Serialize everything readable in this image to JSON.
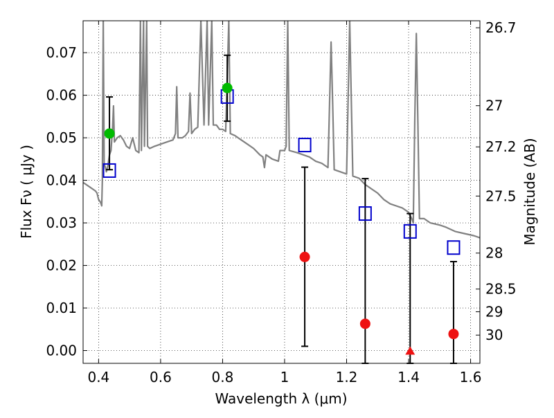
{
  "chart_data": {
    "type": "scatter",
    "xlabel": "Wavelength  λ (μm)",
    "ylabel": "Flux  Fν  ( μJy )",
    "y2label": "Magnitude (AB)",
    "xlim": [
      0.35,
      1.63
    ],
    "ylim": [
      -0.003,
      0.0775
    ],
    "grid": true,
    "grid_style": "dotted",
    "x_ticks": [
      0.4,
      0.6,
      0.8,
      1.0,
      1.2,
      1.4,
      1.6
    ],
    "x_tick_labels": [
      "0.4",
      "0.6",
      "0.8",
      "1",
      "1.2",
      "1.4",
      "1.6"
    ],
    "y_ticks": [
      0.0,
      0.01,
      0.02,
      0.03,
      0.04,
      0.05,
      0.06,
      0.07
    ],
    "y_tick_labels": [
      "0.00",
      "0.01",
      "0.02",
      "0.03",
      "0.04",
      "0.05",
      "0.06",
      "0.07"
    ],
    "y2_ticks": [
      {
        "label": "26.7",
        "mag": 26.7
      },
      {
        "label": "27",
        "mag": 27.0
      },
      {
        "label": "27.2",
        "mag": 27.2
      },
      {
        "label": "27.5",
        "mag": 27.5
      },
      {
        "label": "28",
        "mag": 28.0
      },
      {
        "label": "28.5",
        "mag": 28.5
      },
      {
        "label": "29",
        "mag": 29.0
      },
      {
        "label": "30",
        "mag": 30.0
      }
    ],
    "colors": {
      "model": "#808080",
      "model_points": "#0000cc",
      "detections": "#00bb00",
      "non_detections": "#ee1111",
      "errorbars": "#000000"
    },
    "series": [
      {
        "kind": "line",
        "color": "#808080",
        "points": [
          [
            0.35,
            0.0395
          ],
          [
            0.36,
            0.039
          ],
          [
            0.37,
            0.0385
          ],
          [
            0.38,
            0.038
          ],
          [
            0.39,
            0.0375
          ],
          [
            0.395,
            0.037
          ],
          [
            0.4,
            0.0355
          ],
          [
            0.405,
            0.035
          ],
          [
            0.408,
            0.0345
          ],
          [
            0.41,
            0.034
          ],
          [
            0.412,
            0.04
          ],
          [
            0.415,
            0.0775
          ],
          [
            0.418,
            0.044
          ],
          [
            0.422,
            0.043
          ],
          [
            0.425,
            0.042
          ],
          [
            0.43,
            0.0435
          ],
          [
            0.435,
            0.046
          ],
          [
            0.44,
            0.047
          ],
          [
            0.445,
            0.052
          ],
          [
            0.448,
            0.0575
          ],
          [
            0.451,
            0.049
          ],
          [
            0.46,
            0.05
          ],
          [
            0.47,
            0.0505
          ],
          [
            0.48,
            0.0495
          ],
          [
            0.49,
            0.048
          ],
          [
            0.5,
            0.0475
          ],
          [
            0.51,
            0.05
          ],
          [
            0.52,
            0.047
          ],
          [
            0.53,
            0.0465
          ],
          [
            0.535,
            0.0775
          ],
          [
            0.538,
            0.047
          ],
          [
            0.545,
            0.0775
          ],
          [
            0.548,
            0.048
          ],
          [
            0.555,
            0.0775
          ],
          [
            0.558,
            0.048
          ],
          [
            0.565,
            0.0475
          ],
          [
            0.58,
            0.048
          ],
          [
            0.6,
            0.0485
          ],
          [
            0.62,
            0.049
          ],
          [
            0.64,
            0.0495
          ],
          [
            0.648,
            0.051
          ],
          [
            0.652,
            0.062
          ],
          [
            0.656,
            0.05
          ],
          [
            0.67,
            0.05
          ],
          [
            0.68,
            0.0505
          ],
          [
            0.69,
            0.0515
          ],
          [
            0.695,
            0.0605
          ],
          [
            0.7,
            0.051
          ],
          [
            0.71,
            0.052
          ],
          [
            0.72,
            0.0525
          ],
          [
            0.73,
            0.0775
          ],
          [
            0.74,
            0.053
          ],
          [
            0.75,
            0.0775
          ],
          [
            0.755,
            0.053
          ],
          [
            0.765,
            0.0775
          ],
          [
            0.77,
            0.053
          ],
          [
            0.78,
            0.053
          ],
          [
            0.79,
            0.052
          ],
          [
            0.8,
            0.052
          ],
          [
            0.81,
            0.0515
          ],
          [
            0.82,
            0.0775
          ],
          [
            0.825,
            0.051
          ],
          [
            0.84,
            0.0505
          ],
          [
            0.86,
            0.0495
          ],
          [
            0.88,
            0.0485
          ],
          [
            0.9,
            0.0475
          ],
          [
            0.92,
            0.046
          ],
          [
            0.93,
            0.0455
          ],
          [
            0.935,
            0.043
          ],
          [
            0.94,
            0.046
          ],
          [
            0.96,
            0.045
          ],
          [
            0.98,
            0.0445
          ],
          [
            0.985,
            0.047
          ],
          [
            0.99,
            0.047
          ],
          [
            1.0,
            0.047
          ],
          [
            1.005,
            0.048
          ],
          [
            1.01,
            0.0775
          ],
          [
            1.015,
            0.047
          ],
          [
            1.04,
            0.0465
          ],
          [
            1.06,
            0.046
          ],
          [
            1.08,
            0.0455
          ],
          [
            1.1,
            0.0445
          ],
          [
            1.12,
            0.044
          ],
          [
            1.14,
            0.043
          ],
          [
            1.145,
            0.058
          ],
          [
            1.15,
            0.0725
          ],
          [
            1.155,
            0.058
          ],
          [
            1.16,
            0.0425
          ],
          [
            1.18,
            0.042
          ],
          [
            1.2,
            0.0415
          ],
          [
            1.21,
            0.0775
          ],
          [
            1.22,
            0.041
          ],
          [
            1.24,
            0.0405
          ],
          [
            1.26,
            0.039
          ],
          [
            1.28,
            0.038
          ],
          [
            1.3,
            0.037
          ],
          [
            1.32,
            0.0355
          ],
          [
            1.34,
            0.0345
          ],
          [
            1.36,
            0.034
          ],
          [
            1.38,
            0.0335
          ],
          [
            1.4,
            0.0325
          ],
          [
            1.41,
            0.031
          ],
          [
            1.415,
            0.03
          ],
          [
            1.42,
            0.0545
          ],
          [
            1.425,
            0.0745
          ],
          [
            1.43,
            0.053
          ],
          [
            1.435,
            0.031
          ],
          [
            1.45,
            0.031
          ],
          [
            1.47,
            0.03
          ],
          [
            1.5,
            0.0295
          ],
          [
            1.52,
            0.029
          ],
          [
            1.55,
            0.028
          ],
          [
            1.58,
            0.0275
          ],
          [
            1.61,
            0.027
          ],
          [
            1.63,
            0.0265
          ]
        ]
      },
      {
        "kind": "model_points",
        "color": "#0000cc",
        "points": [
          {
            "x": 0.435,
            "y": 0.0423
          },
          {
            "x": 0.815,
            "y": 0.0597
          },
          {
            "x": 1.065,
            "y": 0.0483
          },
          {
            "x": 1.26,
            "y": 0.0322
          },
          {
            "x": 1.405,
            "y": 0.028
          },
          {
            "x": 1.545,
            "y": 0.0242
          }
        ]
      },
      {
        "kind": "detections",
        "color": "#00bb00",
        "points": [
          {
            "x": 0.435,
            "y": 0.051,
            "err_low": 0.0425,
            "err_high": 0.0596
          },
          {
            "x": 0.815,
            "y": 0.0617,
            "err_low": 0.0539,
            "err_high": 0.0694
          }
        ]
      },
      {
        "kind": "non_detections",
        "color": "#ee1111",
        "points": [
          {
            "x": 1.065,
            "y": 0.022,
            "err_low": 0.001,
            "err_high": 0.0431,
            "marker": "circle"
          },
          {
            "x": 1.26,
            "y": 0.0063,
            "err_low": -0.003,
            "err_high": 0.0404,
            "marker": "circle"
          },
          {
            "x": 1.405,
            "y": 0.0,
            "err_low": -0.003,
            "err_high": 0.0322,
            "marker": "triangle"
          },
          {
            "x": 1.545,
            "y": 0.0039,
            "err_low": -0.003,
            "err_high": 0.0209,
            "marker": "circle"
          }
        ]
      }
    ]
  }
}
